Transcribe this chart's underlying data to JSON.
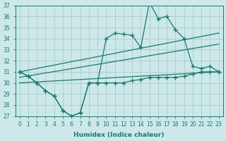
{
  "xlabel": "Humidex (Indice chaleur)",
  "bg_color": "#cce8e8",
  "line_color": "#1a7a6e",
  "grid_color": "#b0d8d8",
  "xlim": [
    -0.5,
    23.5
  ],
  "ylim": [
    27,
    37
  ],
  "yticks": [
    27,
    28,
    29,
    30,
    31,
    32,
    33,
    34,
    35,
    36,
    37
  ],
  "xticks": [
    0,
    1,
    2,
    3,
    4,
    5,
    6,
    7,
    8,
    9,
    10,
    11,
    12,
    13,
    14,
    15,
    16,
    17,
    18,
    19,
    20,
    21,
    22,
    23
  ],
  "curve1_x": [
    0,
    1,
    2,
    3,
    4,
    5,
    6,
    7,
    8,
    9,
    10,
    11,
    12,
    13,
    14,
    15,
    16,
    17,
    18,
    19,
    20,
    21,
    22,
    23
  ],
  "curve1_y": [
    31.0,
    30.6,
    30.0,
    29.3,
    28.8,
    27.5,
    27.0,
    27.3,
    30.0,
    30.0,
    34.0,
    34.5,
    34.4,
    34.3,
    33.2,
    37.3,
    35.8,
    36.0,
    34.8,
    34.0,
    31.5,
    31.3,
    31.5,
    31.0
  ],
  "curve2_x": [
    0,
    1,
    2,
    3,
    4,
    5,
    6,
    7,
    8,
    9,
    10,
    11,
    12,
    13,
    14,
    15,
    16,
    17,
    18,
    19,
    20,
    21,
    22,
    23
  ],
  "curve2_y": [
    31.0,
    30.6,
    30.0,
    29.3,
    28.8,
    27.5,
    27.0,
    27.3,
    30.0,
    30.0,
    30.0,
    30.0,
    30.0,
    30.2,
    30.3,
    30.5,
    30.5,
    30.5,
    30.5,
    30.6,
    30.8,
    31.0,
    31.0,
    31.0
  ],
  "line1_x": [
    0,
    23
  ],
  "line1_y": [
    31.0,
    34.5
  ],
  "line2_x": [
    0,
    23
  ],
  "line2_y": [
    30.5,
    33.5
  ],
  "line3_x": [
    0,
    23
  ],
  "line3_y": [
    30.0,
    31.0
  ]
}
